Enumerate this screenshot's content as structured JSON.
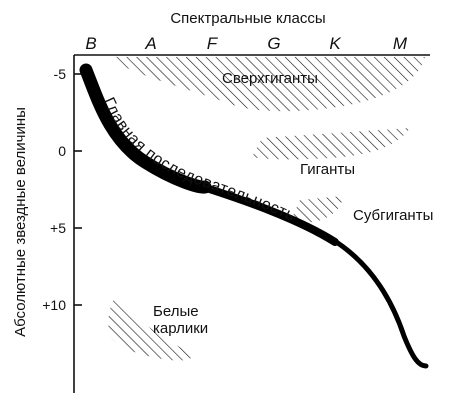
{
  "top_axis_title": "Спектральные классы",
  "left_axis_title": "Абсолютные звездные величины",
  "spectral_classes": [
    "B",
    "A",
    "F",
    "G",
    "K",
    "M"
  ],
  "magnitude_ticks": [
    "-5",
    "0",
    "+5",
    "+10"
  ],
  "regions": {
    "supergiants": "Сверхгиганты",
    "giants": "Гиганты",
    "subgiants": "Субгиганты",
    "white_dwarfs_line1": "Белые",
    "white_dwarfs_line2": "карлики"
  },
  "main_sequence": "Главная последовательность",
  "colors": {
    "ink": "#111111",
    "background": "#ffffff"
  }
}
